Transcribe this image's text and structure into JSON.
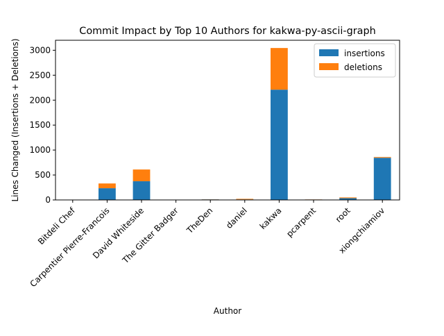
{
  "chart_data": {
    "type": "bar",
    "stacked": true,
    "title": "Commit Impact by Top 10 Authors for kakwa-py-ascii-graph",
    "xlabel": "Author",
    "ylabel": "Lines Changed (Insertions + Deletions)",
    "categories": [
      "Bitdeli Chef",
      "Carpentier Pierre-Francois",
      "David Whiteside",
      "The Gitter Badger",
      "TheDen",
      "daniel",
      "kakwa",
      "pcarpent",
      "root",
      "xiongchiamiov"
    ],
    "series": [
      {
        "name": "insertions",
        "color": "#1f77b4",
        "values": [
          0,
          235,
          375,
          0,
          10,
          10,
          2210,
          8,
          35,
          845
        ]
      },
      {
        "name": "deletions",
        "color": "#ff7f0e",
        "values": [
          0,
          95,
          235,
          0,
          2,
          12,
          835,
          2,
          15,
          15
        ]
      }
    ],
    "yticks": [
      0,
      500,
      1000,
      1500,
      2000,
      2500,
      3000
    ],
    "ylim": [
      0,
      3200
    ],
    "grid": false,
    "legend_position": "upper right"
  }
}
